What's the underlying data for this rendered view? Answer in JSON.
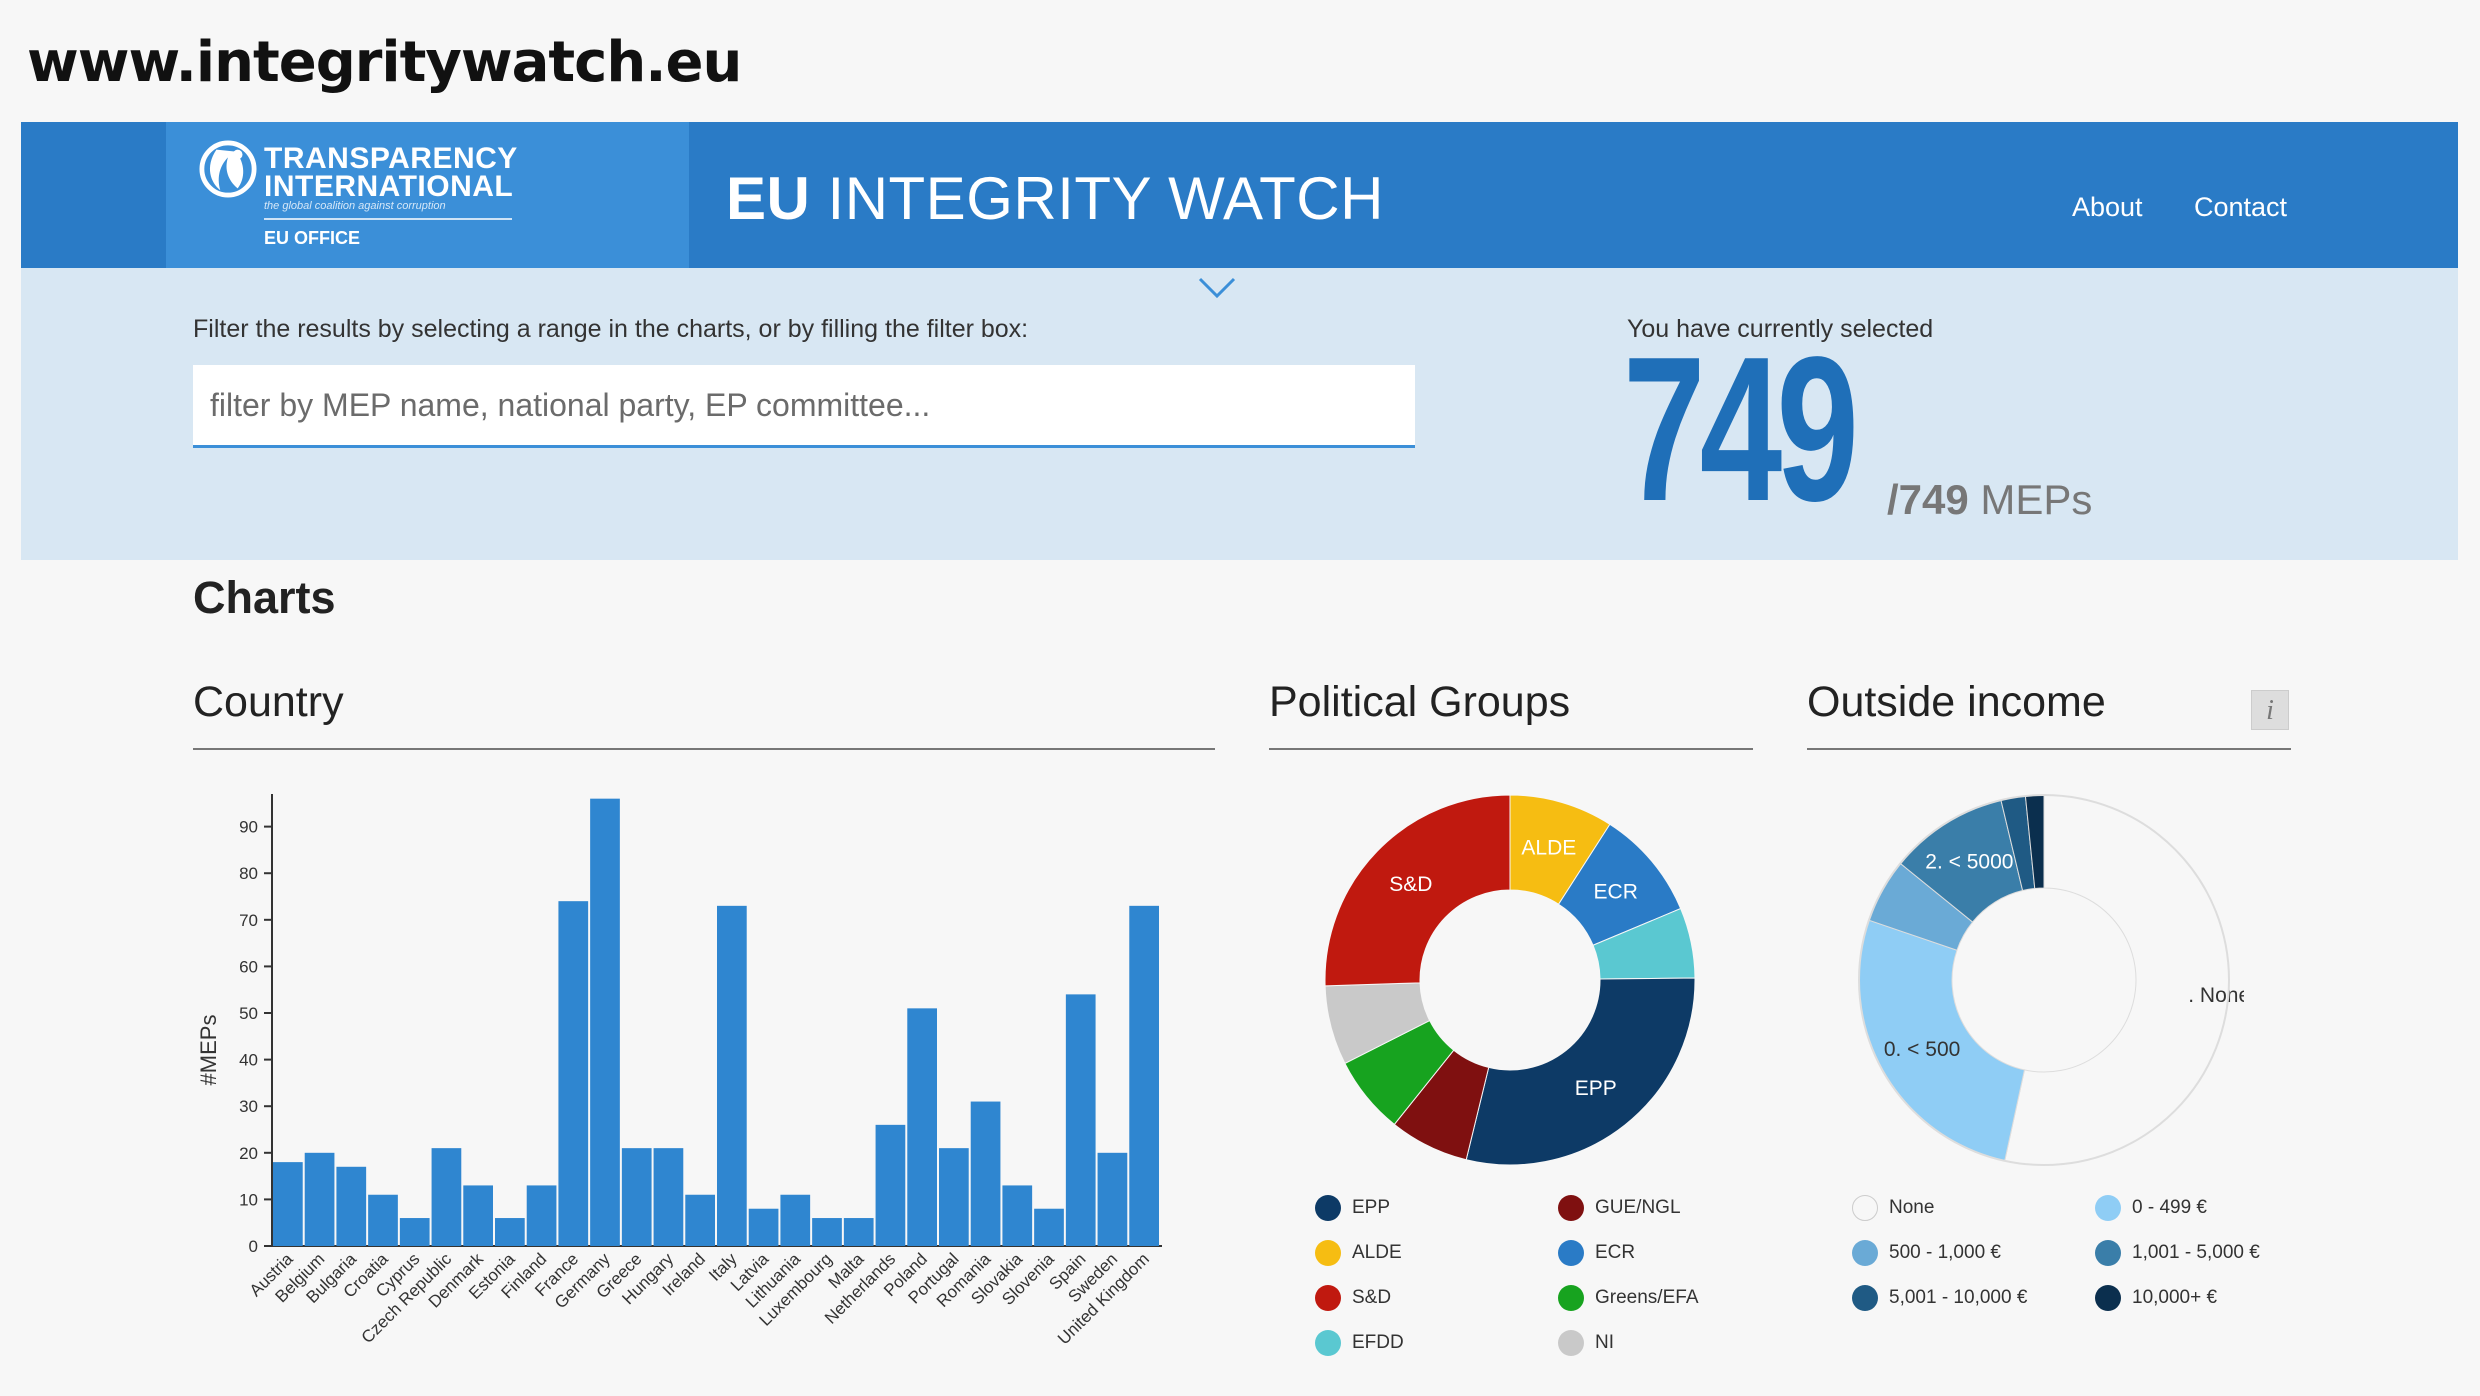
{
  "site_url": "www.integritywatch.eu",
  "header": {
    "logo": {
      "line1": "TRANSPARENCY",
      "line2": "INTERNATIONAL",
      "tagline": "the global coalition against corruption",
      "office": "EU OFFICE"
    },
    "title_bold": "EU",
    "title_rest": " INTEGRITY WATCH",
    "nav": {
      "about": "About",
      "contact": "Contact"
    }
  },
  "filter": {
    "label": "Filter the results by selecting a range in the charts, or by filling the filter box:",
    "placeholder": "filter by MEP name, national party, EP committee...",
    "value": ""
  },
  "selection": {
    "label": "You have currently selected",
    "count": "749",
    "total": "/749",
    "unit": " MEPs"
  },
  "charts_heading": "Charts",
  "panels": {
    "country": "Country",
    "groups": "Political Groups",
    "income": "Outside income",
    "info": "i"
  },
  "colors": {
    "bar": "#2f86d0",
    "EPP": "#0d3a66",
    "ALDE": "#f6bd12",
    "S&D": "#c0190f",
    "EFDD": "#5ac8d1",
    "GUE/NGL": "#7f1010",
    "ECR": "#2a7bc6",
    "Greens/EFA": "#17a31f",
    "NI": "#c9c9c9"
  },
  "chart_data": [
    {
      "type": "bar",
      "title": "Country",
      "ylabel": "#MEPs",
      "xlabel": "",
      "ylim": [
        0,
        97
      ],
      "yticks": [
        0,
        10,
        20,
        30,
        40,
        50,
        60,
        70,
        80,
        90
      ],
      "categories": [
        "Austria",
        "Belgium",
        "Bulgaria",
        "Croatia",
        "Cyprus",
        "Czech Republic",
        "Denmark",
        "Estonia",
        "Finland",
        "France",
        "Germany",
        "Greece",
        "Hungary",
        "Ireland",
        "Italy",
        "Latvia",
        "Lithuania",
        "Luxembourg",
        "Malta",
        "Netherlands",
        "Poland",
        "Portugal",
        "Romania",
        "Slovakia",
        "Slovenia",
        "Spain",
        "Sweden",
        "United Kingdom"
      ],
      "values": [
        18,
        20,
        17,
        11,
        6,
        21,
        13,
        6,
        13,
        74,
        96,
        21,
        21,
        11,
        73,
        8,
        11,
        6,
        6,
        26,
        51,
        21,
        31,
        13,
        8,
        54,
        20,
        73
      ]
    },
    {
      "type": "pie",
      "title": "Political Groups",
      "labels_on_chart": [
        "ALDE",
        "ECR",
        "EPP",
        "S&D"
      ],
      "slices": [
        {
          "label": "ALDE",
          "value": 68,
          "color": "#f6bd12"
        },
        {
          "label": "ECR",
          "value": 72,
          "color": "#2a7bc6"
        },
        {
          "label": "EFDD",
          "value": 46,
          "color": "#5ac8d1"
        },
        {
          "label": "EPP",
          "value": 217,
          "color": "#0d3a66"
        },
        {
          "label": "GUE/NGL",
          "value": 52,
          "color": "#7f1010"
        },
        {
          "label": "Greens/EFA",
          "value": 51,
          "color": "#17a31f"
        },
        {
          "label": "NI",
          "value": 52,
          "color": "#c9c9c9"
        },
        {
          "label": "S&D",
          "value": 191,
          "color": "#c0190f"
        }
      ],
      "legend": [
        {
          "label": "EPP",
          "color": "#0d3a66"
        },
        {
          "label": "GUE/NGL",
          "color": "#7f1010"
        },
        {
          "label": "ALDE",
          "color": "#f6bd12"
        },
        {
          "label": "ECR",
          "color": "#2a7bc6"
        },
        {
          "label": "S&D",
          "color": "#c0190f"
        },
        {
          "label": "Greens/EFA",
          "color": "#17a31f"
        },
        {
          "label": "EFDD",
          "color": "#5ac8d1"
        },
        {
          "label": "NI",
          "color": "#c9c9c9"
        }
      ]
    },
    {
      "type": "pie",
      "title": "Outside income",
      "slices": [
        {
          "label": ". None",
          "value": 400,
          "color": "#f7f7f7"
        },
        {
          "label": "0. < 500",
          "value": 201,
          "color": "#8fcdf5"
        },
        {
          "label": "",
          "value": 42,
          "color": "#6aaad6"
        },
        {
          "label": "2. < 5000",
          "value": 78,
          "color": "#3a7ea9"
        },
        {
          "label": "",
          "value": 16,
          "color": "#1f5a84"
        },
        {
          "label": "",
          "value": 12,
          "color": "#0b2f4e"
        }
      ],
      "legend": [
        {
          "label": "None",
          "color": "#f7f7f7"
        },
        {
          "label": "0 - 499 €",
          "color": "#8fcdf5"
        },
        {
          "label": "500 - 1,000 €",
          "color": "#6aaad6"
        },
        {
          "label": "1,001 - 5,000 €",
          "color": "#3a7ea9"
        },
        {
          "label": "5,001 - 10,000 €",
          "color": "#1f5a84"
        },
        {
          "label": "10,000+ €",
          "color": "#0b2f4e"
        }
      ]
    }
  ]
}
